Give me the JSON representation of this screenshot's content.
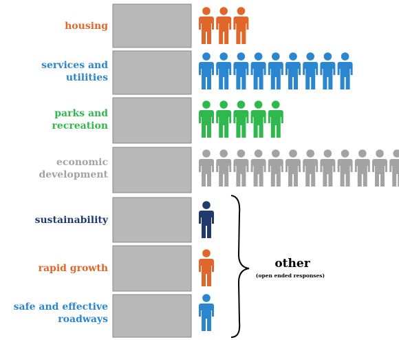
{
  "chart_data": {
    "type": "pictograph",
    "categories": [
      "housing",
      "services and utilities",
      "parks and recreation",
      "economic development",
      "sustainability",
      "rapid growth",
      "safe and effective roadways"
    ],
    "values": [
      3,
      9,
      5,
      12,
      1,
      1,
      1
    ],
    "colors": [
      "#e0662a",
      "#2a86cf",
      "#2fb84c",
      "#a3a3a3",
      "#1f3a6e",
      "#e0662a",
      "#2a86cf"
    ],
    "annotations": [
      "other",
      "(open ended responses)"
    ]
  }
}
